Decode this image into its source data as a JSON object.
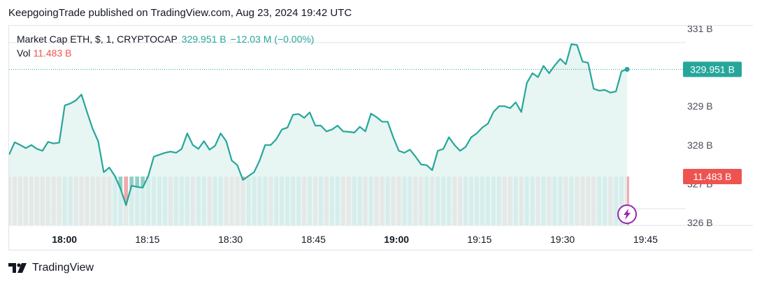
{
  "header": {
    "publisher_line": "KeepgoingTrade published on TradingView.com, Aug 23, 2024 19:42 UTC"
  },
  "legend": {
    "symbol": "Market Cap ETH, $, 1, CRYPTOCAP",
    "value": "329.951 B",
    "change": "−12.03 M (−0.00%)",
    "volume_label": "Vol",
    "volume_value": "11.483 B"
  },
  "footer": {
    "brand": "TradingView"
  },
  "colors": {
    "line": "#26a69a",
    "area": "#e3f3f1",
    "volume_up": "#8fcfc6",
    "volume_down": "#f0a9a9",
    "price_badge": "#26a69a",
    "volume_badge": "#ef5350",
    "grid": "#e0e3eb",
    "lightning": "#9c27b0"
  },
  "icons": {
    "lightning": "lightning-bolt-icon",
    "brand": "tradingview-logo-icon"
  },
  "chart_data": {
    "type": "area",
    "ylim": [
      326,
      331
    ],
    "yticks": [
      326,
      327,
      328,
      329,
      331
    ],
    "ytick_labels": [
      "326 B",
      "327 B",
      "328 B",
      "329 B",
      "331 B"
    ],
    "xticks": [
      {
        "label": "18:00",
        "minute": 0,
        "bold": true
      },
      {
        "label": "18:15",
        "minute": 15,
        "bold": false
      },
      {
        "label": "18:30",
        "minute": 30,
        "bold": false
      },
      {
        "label": "18:45",
        "minute": 45,
        "bold": false
      },
      {
        "label": "19:00",
        "minute": 60,
        "bold": true
      },
      {
        "label": "19:15",
        "minute": 75,
        "bold": false
      },
      {
        "label": "19:30",
        "minute": 90,
        "bold": false
      },
      {
        "label": "19:45",
        "minute": 105,
        "bold": false
      }
    ],
    "xlim_minutes": [
      -10,
      110
    ],
    "price_label": "329.951 B",
    "price_value": 329.951,
    "volume_label": "11.483 B",
    "series": [
      {
        "values": [
          327.75,
          328.07,
          328.0,
          327.92,
          328.0,
          327.9,
          327.85,
          328.08,
          328.04,
          328.06,
          329.02,
          329.07,
          329.15,
          329.3,
          328.85,
          328.42,
          328.1,
          327.3,
          327.42,
          327.2,
          326.88,
          326.45,
          326.95,
          326.92,
          326.9,
          327.2,
          327.7,
          327.75,
          327.8,
          327.83,
          327.8,
          327.9,
          328.3,
          328.0,
          327.9,
          328.1,
          327.88,
          327.98,
          328.3,
          328.1,
          327.6,
          327.48,
          327.1,
          327.2,
          327.3,
          327.6,
          328.0,
          328.0,
          328.15,
          328.4,
          328.45,
          328.78,
          328.8,
          328.7,
          328.84,
          328.5,
          328.5,
          328.35,
          328.4,
          328.5,
          328.35,
          328.34,
          328.32,
          328.47,
          328.35,
          328.81,
          328.72,
          328.6,
          328.6,
          328.2,
          327.85,
          327.8,
          327.88,
          327.7,
          327.5,
          327.48,
          327.35,
          327.85,
          327.9,
          328.2,
          328.0,
          327.85,
          327.95,
          328.2,
          328.3,
          328.45,
          328.55,
          328.85,
          329.0,
          329.0,
          328.95,
          329.1,
          328.85,
          329.6,
          329.85,
          329.75,
          330.04,
          329.85,
          330.05,
          330.22,
          330.08,
          330.6,
          330.58,
          330.15,
          330.12,
          329.45,
          329.4,
          329.42,
          329.35,
          329.38,
          329.9,
          329.95
        ],
        "volume_up": [
          0,
          0,
          0,
          0,
          0,
          0,
          0,
          0,
          0,
          0,
          1,
          1,
          0,
          0,
          0,
          0,
          0,
          0,
          0,
          1,
          1,
          0,
          1,
          1,
          1,
          1,
          1,
          1,
          1,
          0,
          1,
          1,
          1,
          0,
          1,
          1,
          0,
          1,
          1,
          0,
          0,
          0,
          0,
          1,
          1,
          1,
          1,
          0,
          1,
          1,
          1,
          1,
          1,
          0,
          1,
          0,
          1,
          0,
          1,
          1,
          0,
          0,
          1,
          1,
          0,
          1,
          0,
          0,
          1,
          0,
          0,
          1,
          1,
          0,
          0,
          1,
          0,
          1,
          1,
          1,
          0,
          0,
          1,
          1,
          1,
          1,
          1,
          1,
          1,
          0,
          0,
          1,
          0,
          1,
          1,
          0,
          1,
          0,
          1,
          1,
          0,
          1,
          0,
          0,
          0,
          0,
          1,
          1,
          0,
          1,
          1,
          0
        ]
      }
    ]
  }
}
